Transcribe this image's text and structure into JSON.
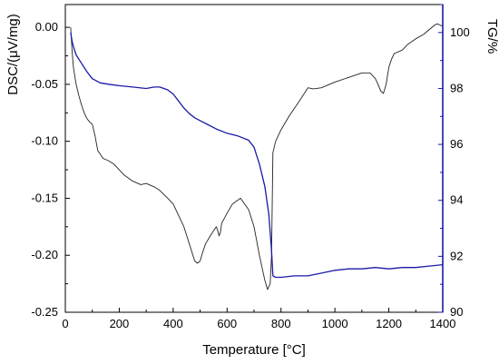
{
  "chart_data": {
    "type": "line",
    "title": "",
    "xlabel": "Temperature [°C]",
    "ylabel_left": "DSC/(μV/mg)",
    "ylabel_right": "TG/%",
    "xlim": [
      0,
      1400
    ],
    "ylim_left": [
      -0.25,
      0.02
    ],
    "ylim_right": [
      90,
      101
    ],
    "x_ticks": [
      "0",
      "200",
      "400",
      "600",
      "800",
      "1000",
      "1200",
      "1400"
    ],
    "y_left_ticks": [
      "0.00",
      "-0.05",
      "-0.10",
      "-0.15",
      "-0.20",
      "-0.25"
    ],
    "y_right_ticks": [
      "100",
      "98",
      "96",
      "94",
      "92",
      "90"
    ],
    "colors": {
      "DSC": "#222222",
      "TG": "#1a1aa8",
      "right_axis": "#1a1aa8"
    },
    "series": [
      {
        "key": "DSC",
        "axis": "left",
        "x": [
          20,
          25,
          30,
          40,
          50,
          60,
          70,
          80,
          90,
          100,
          110,
          120,
          140,
          160,
          180,
          200,
          220,
          250,
          280,
          300,
          330,
          350,
          380,
          400,
          420,
          440,
          460,
          480,
          490,
          500,
          510,
          520,
          540,
          560,
          565,
          570,
          575,
          580,
          600,
          620,
          650,
          680,
          700,
          720,
          740,
          750,
          760,
          765,
          770,
          780,
          800,
          830,
          870,
          900,
          920,
          950,
          980,
          1000,
          1050,
          1100,
          1130,
          1150,
          1160,
          1170,
          1180,
          1190,
          1200,
          1210,
          1220,
          1250,
          1270,
          1300,
          1330,
          1350,
          1370,
          1380,
          1390,
          1400
        ],
        "values": [
          0.0,
          -0.02,
          -0.035,
          -0.05,
          -0.06,
          -0.068,
          -0.075,
          -0.08,
          -0.083,
          -0.085,
          -0.095,
          -0.108,
          -0.115,
          -0.117,
          -0.12,
          -0.125,
          -0.13,
          -0.135,
          -0.138,
          -0.137,
          -0.14,
          -0.143,
          -0.15,
          -0.155,
          -0.165,
          -0.175,
          -0.19,
          -0.205,
          -0.207,
          -0.205,
          -0.197,
          -0.19,
          -0.182,
          -0.175,
          -0.178,
          -0.183,
          -0.18,
          -0.172,
          -0.163,
          -0.155,
          -0.15,
          -0.16,
          -0.175,
          -0.2,
          -0.222,
          -0.23,
          -0.225,
          -0.2,
          -0.11,
          -0.1,
          -0.09,
          -0.078,
          -0.064,
          -0.053,
          -0.054,
          -0.053,
          -0.05,
          -0.048,
          -0.044,
          -0.04,
          -0.04,
          -0.045,
          -0.05,
          -0.056,
          -0.058,
          -0.05,
          -0.035,
          -0.028,
          -0.023,
          -0.02,
          -0.015,
          -0.01,
          -0.006,
          -0.002,
          0.002,
          0.003,
          0.002,
          0.001
        ]
      },
      {
        "key": "TG",
        "axis": "right",
        "x": [
          20,
          25,
          30,
          40,
          60,
          80,
          100,
          130,
          160,
          200,
          250,
          300,
          330,
          350,
          380,
          400,
          420,
          440,
          460,
          480,
          500,
          530,
          560,
          600,
          640,
          680,
          700,
          720,
          740,
          755,
          765,
          770,
          780,
          800,
          850,
          900,
          950,
          1000,
          1050,
          1100,
          1150,
          1200,
          1250,
          1300,
          1350,
          1400
        ],
        "values": [
          100.0,
          99.7,
          99.5,
          99.2,
          98.9,
          98.6,
          98.35,
          98.2,
          98.15,
          98.1,
          98.05,
          98.0,
          98.05,
          98.05,
          97.95,
          97.8,
          97.55,
          97.3,
          97.1,
          96.95,
          96.85,
          96.7,
          96.55,
          96.4,
          96.3,
          96.15,
          95.9,
          95.3,
          94.5,
          93.5,
          92.2,
          91.3,
          91.25,
          91.25,
          91.3,
          91.3,
          91.4,
          91.5,
          91.55,
          91.55,
          91.6,
          91.55,
          91.6,
          91.6,
          91.65,
          91.7
        ]
      }
    ]
  }
}
